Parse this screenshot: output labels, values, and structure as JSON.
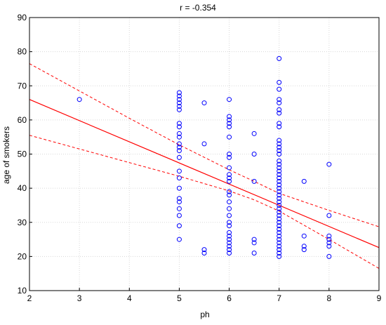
{
  "chart_data": {
    "type": "scatter",
    "title": "r =   -0.354",
    "xlabel": "ph",
    "ylabel": "age of smokers",
    "xlim": [
      2,
      9
    ],
    "ylim": [
      10,
      90
    ],
    "xticks": [
      2,
      3,
      4,
      5,
      6,
      7,
      8,
      9
    ],
    "yticks": [
      10,
      20,
      30,
      40,
      50,
      60,
      70,
      80,
      90
    ],
    "grid": true,
    "marker_color": "#0000ff",
    "line_color": "#ff0000",
    "regression": {
      "x": [
        2,
        9
      ],
      "y": [
        66,
        22.6
      ]
    },
    "confidence_band": {
      "x": [
        2,
        3,
        4,
        5,
        6,
        6.5,
        7,
        8,
        9
      ],
      "upper": [
        76.5,
        68.5,
        60.5,
        52.7,
        45.4,
        42.0,
        38.5,
        33.5,
        28.7
      ],
      "lower": [
        55.5,
        51.5,
        47.5,
        43.5,
        39.2,
        36.6,
        33.3,
        25.0,
        16.5
      ]
    },
    "points": [
      {
        "x": 3,
        "y": 66
      },
      {
        "x": 5,
        "y": 68
      },
      {
        "x": 5,
        "y": 67
      },
      {
        "x": 5,
        "y": 66
      },
      {
        "x": 5,
        "y": 65
      },
      {
        "x": 5,
        "y": 64
      },
      {
        "x": 5,
        "y": 63
      },
      {
        "x": 5,
        "y": 59
      },
      {
        "x": 5,
        "y": 58
      },
      {
        "x": 5,
        "y": 56
      },
      {
        "x": 5,
        "y": 55
      },
      {
        "x": 5,
        "y": 53
      },
      {
        "x": 5,
        "y": 52
      },
      {
        "x": 5,
        "y": 51
      },
      {
        "x": 5,
        "y": 49
      },
      {
        "x": 5,
        "y": 45
      },
      {
        "x": 5,
        "y": 43
      },
      {
        "x": 5,
        "y": 40
      },
      {
        "x": 5,
        "y": 37
      },
      {
        "x": 5,
        "y": 36
      },
      {
        "x": 5,
        "y": 34
      },
      {
        "x": 5,
        "y": 32
      },
      {
        "x": 5,
        "y": 29
      },
      {
        "x": 5,
        "y": 25
      },
      {
        "x": 5.5,
        "y": 65
      },
      {
        "x": 5.5,
        "y": 53
      },
      {
        "x": 5.5,
        "y": 22
      },
      {
        "x": 5.5,
        "y": 21
      },
      {
        "x": 6,
        "y": 66
      },
      {
        "x": 6,
        "y": 61
      },
      {
        "x": 6,
        "y": 60
      },
      {
        "x": 6,
        "y": 59
      },
      {
        "x": 6,
        "y": 58
      },
      {
        "x": 6,
        "y": 55
      },
      {
        "x": 6,
        "y": 50
      },
      {
        "x": 6,
        "y": 49
      },
      {
        "x": 6,
        "y": 46
      },
      {
        "x": 6,
        "y": 44
      },
      {
        "x": 6,
        "y": 43
      },
      {
        "x": 6,
        "y": 42
      },
      {
        "x": 6,
        "y": 39
      },
      {
        "x": 6,
        "y": 38
      },
      {
        "x": 6,
        "y": 36
      },
      {
        "x": 6,
        "y": 34
      },
      {
        "x": 6,
        "y": 32
      },
      {
        "x": 6,
        "y": 30
      },
      {
        "x": 6,
        "y": 29
      },
      {
        "x": 6,
        "y": 27
      },
      {
        "x": 6,
        "y": 26
      },
      {
        "x": 6,
        "y": 25
      },
      {
        "x": 6,
        "y": 24
      },
      {
        "x": 6,
        "y": 23
      },
      {
        "x": 6,
        "y": 22
      },
      {
        "x": 6,
        "y": 21
      },
      {
        "x": 6.5,
        "y": 56
      },
      {
        "x": 6.5,
        "y": 50
      },
      {
        "x": 6.5,
        "y": 42
      },
      {
        "x": 6.5,
        "y": 25
      },
      {
        "x": 6.5,
        "y": 24
      },
      {
        "x": 6.5,
        "y": 21
      },
      {
        "x": 7,
        "y": 78
      },
      {
        "x": 7,
        "y": 71
      },
      {
        "x": 7,
        "y": 69
      },
      {
        "x": 7,
        "y": 66
      },
      {
        "x": 7,
        "y": 65
      },
      {
        "x": 7,
        "y": 63
      },
      {
        "x": 7,
        "y": 62
      },
      {
        "x": 7,
        "y": 59
      },
      {
        "x": 7,
        "y": 58
      },
      {
        "x": 7,
        "y": 54
      },
      {
        "x": 7,
        "y": 53
      },
      {
        "x": 7,
        "y": 52
      },
      {
        "x": 7,
        "y": 51
      },
      {
        "x": 7,
        "y": 50
      },
      {
        "x": 7,
        "y": 48
      },
      {
        "x": 7,
        "y": 47
      },
      {
        "x": 7,
        "y": 46
      },
      {
        "x": 7,
        "y": 45
      },
      {
        "x": 7,
        "y": 44
      },
      {
        "x": 7,
        "y": 43
      },
      {
        "x": 7,
        "y": 42
      },
      {
        "x": 7,
        "y": 41
      },
      {
        "x": 7,
        "y": 40
      },
      {
        "x": 7,
        "y": 39
      },
      {
        "x": 7,
        "y": 38
      },
      {
        "x": 7,
        "y": 37
      },
      {
        "x": 7,
        "y": 36
      },
      {
        "x": 7,
        "y": 35
      },
      {
        "x": 7,
        "y": 34
      },
      {
        "x": 7,
        "y": 33
      },
      {
        "x": 7,
        "y": 32
      },
      {
        "x": 7,
        "y": 31
      },
      {
        "x": 7,
        "y": 30
      },
      {
        "x": 7,
        "y": 29
      },
      {
        "x": 7,
        "y": 28
      },
      {
        "x": 7,
        "y": 27
      },
      {
        "x": 7,
        "y": 26
      },
      {
        "x": 7,
        "y": 25
      },
      {
        "x": 7,
        "y": 24
      },
      {
        "x": 7,
        "y": 23
      },
      {
        "x": 7,
        "y": 22
      },
      {
        "x": 7,
        "y": 21
      },
      {
        "x": 7,
        "y": 20
      },
      {
        "x": 7.5,
        "y": 42
      },
      {
        "x": 7.5,
        "y": 26
      },
      {
        "x": 7.5,
        "y": 23
      },
      {
        "x": 7.5,
        "y": 22
      },
      {
        "x": 8,
        "y": 47
      },
      {
        "x": 8,
        "y": 32
      },
      {
        "x": 8,
        "y": 26
      },
      {
        "x": 8,
        "y": 25
      },
      {
        "x": 8,
        "y": 24
      },
      {
        "x": 8,
        "y": 23
      },
      {
        "x": 8,
        "y": 20
      }
    ]
  }
}
